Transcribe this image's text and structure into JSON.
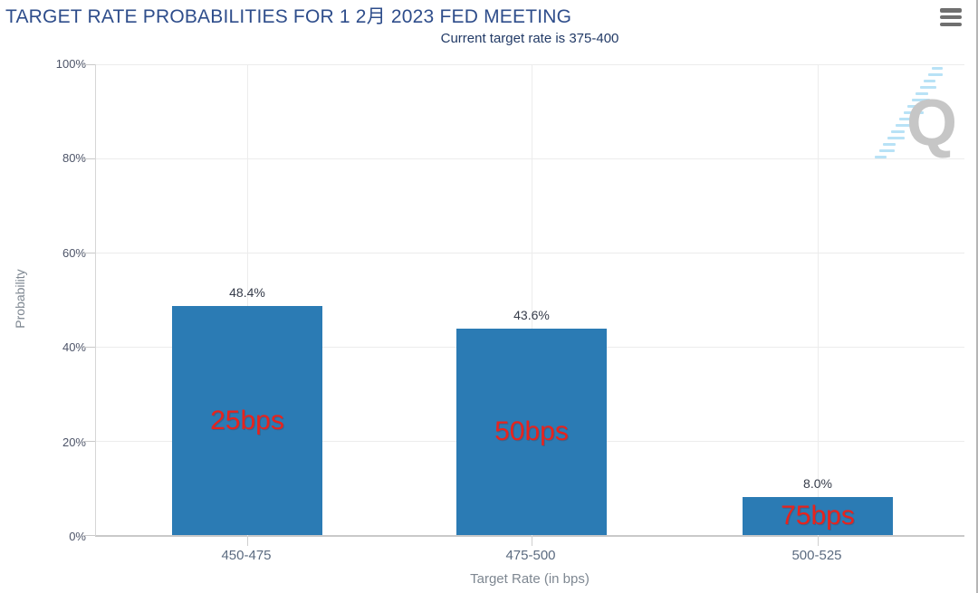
{
  "header": {
    "menu_icon": "hamburger-menu-icon"
  },
  "chart_data": {
    "type": "bar",
    "title": "TARGET RATE PROBABILITIES FOR 1 2月 2023 FED MEETING",
    "subtitle": "Current target rate is 375-400",
    "categories": [
      "450-475",
      "475-500",
      "500-525"
    ],
    "values": [
      48.4,
      43.6,
      8.0
    ],
    "value_labels": [
      "48.4%",
      "43.6%",
      "8.0%"
    ],
    "bar_annotations": [
      "25bps",
      "50bps",
      "75bps"
    ],
    "xlabel": "Target Rate (in bps)",
    "ylabel": "Probability",
    "ylim": [
      0,
      100
    ],
    "ytick_labels": [
      "100%",
      "80%",
      "60%",
      "40%",
      "20%",
      "0%"
    ],
    "grid": true,
    "legend": false,
    "colors": {
      "bar": "#2b7bb4",
      "annotation": "#e8231d",
      "title": "#2e4d8b",
      "subtitle": "#223a66",
      "axis_label": "#7e8791",
      "tick_label": "#4d5468",
      "xtick_label": "#5b6b80",
      "value_label": "#363c4a",
      "gridline": "#ececec",
      "axis_line": "#c9c9c9",
      "watermark": "#c6c6c6",
      "watermark_dash": "#b8e2f6"
    }
  },
  "watermark": {
    "letter": "Q",
    "name": "quikstrike-logo"
  }
}
